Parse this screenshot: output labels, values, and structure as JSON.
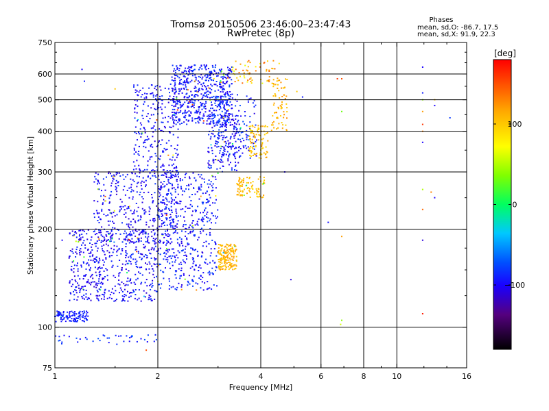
{
  "chart_data": {
    "type": "scatter",
    "title": "Tromsø 20150506 23:46:00–23:47:43",
    "subtitle": "RwPretec (8p)",
    "xlabel": "Frequency [MHz]",
    "ylabel": "Stationary phase Virtual Height [km]",
    "x_scale": "log2",
    "y_scale": "log",
    "xlim": [
      1,
      16
    ],
    "ylim": [
      75,
      750
    ],
    "x_ticks": [
      1,
      2,
      4,
      6,
      8,
      10,
      16
    ],
    "x_tick_labels": [
      "1",
      "2",
      "4",
      "6",
      "8",
      "10",
      "16"
    ],
    "y_ticks": [
      75,
      100,
      200,
      300,
      400,
      500,
      600,
      750
    ],
    "y_tick_labels": [
      "75",
      "100",
      "200",
      "300",
      "400",
      "500",
      "600",
      "750"
    ],
    "grid": true,
    "legend": {
      "title": "Phases",
      "lines": [
        "mean, sd,O: -86.7, 17.5",
        "mean, sd,X:  91.9, 22.3"
      ]
    },
    "colorbar": {
      "label": "[deg]",
      "range": [
        -180,
        180
      ],
      "ticks": [
        100,
        0,
        -100
      ],
      "tick_labels": [
        "100",
        "0",
        "−100"
      ]
    },
    "clusters": [
      {
        "x": [
          1.0,
          1.25
        ],
        "y": [
          104,
          112
        ],
        "n": 120,
        "phase": [
          -100,
          -80
        ]
      },
      {
        "x": [
          1.0,
          2.05
        ],
        "y": [
          88,
          95
        ],
        "n": 40,
        "phase": [
          -100,
          -70
        ]
      },
      {
        "x": [
          1.1,
          2.0
        ],
        "y": [
          120,
          200
        ],
        "n": 550,
        "phase": [
          -115,
          -80
        ]
      },
      {
        "x": [
          1.3,
          2.3
        ],
        "y": [
          180,
          300
        ],
        "n": 380,
        "phase": [
          -115,
          -80
        ]
      },
      {
        "x": [
          1.7,
          2.3
        ],
        "y": [
          300,
          560
        ],
        "n": 250,
        "phase": [
          -110,
          -80
        ]
      },
      {
        "x": [
          2.0,
          3.0
        ],
        "y": [
          130,
          300
        ],
        "n": 500,
        "phase": [
          -110,
          -75
        ]
      },
      {
        "x": [
          2.2,
          3.3
        ],
        "y": [
          420,
          640
        ],
        "n": 600,
        "phase": [
          -110,
          -75
        ]
      },
      {
        "x": [
          2.8,
          3.5
        ],
        "y": [
          300,
          450
        ],
        "n": 180,
        "phase": [
          -115,
          -75
        ]
      },
      {
        "x": [
          3.0,
          3.9
        ],
        "y": [
          330,
          520
        ],
        "n": 130,
        "phase": [
          -110,
          -70
        ]
      },
      {
        "x": [
          3.0,
          3.4
        ],
        "y": [
          150,
          180
        ],
        "n": 160,
        "phase": [
          95,
          125
        ]
      },
      {
        "x": [
          3.4,
          4.1
        ],
        "y": [
          250,
          290
        ],
        "n": 90,
        "phase": [
          90,
          120
        ]
      },
      {
        "x": [
          3.7,
          4.2
        ],
        "y": [
          330,
          420
        ],
        "n": 90,
        "phase": [
          85,
          120
        ]
      },
      {
        "x": [
          4.3,
          4.8
        ],
        "y": [
          400,
          580
        ],
        "n": 70,
        "phase": [
          95,
          130
        ]
      },
      {
        "x": [
          3.3,
          4.6
        ],
        "y": [
          560,
          660
        ],
        "n": 60,
        "phase": [
          60,
          150
        ]
      }
    ],
    "points": [
      {
        "x": 1.2,
        "y": 620,
        "phase": -100
      },
      {
        "x": 1.22,
        "y": 570,
        "phase": -90
      },
      {
        "x": 4.7,
        "y": 300,
        "phase": -100
      },
      {
        "x": 4.9,
        "y": 140,
        "phase": -110
      },
      {
        "x": 6.3,
        "y": 210,
        "phase": -95
      },
      {
        "x": 6.9,
        "y": 190,
        "phase": 120
      },
      {
        "x": 6.9,
        "y": 105,
        "phase": 40
      },
      {
        "x": 6.85,
        "y": 102,
        "phase": 60
      },
      {
        "x": 6.7,
        "y": 580,
        "phase": 160
      },
      {
        "x": 6.9,
        "y": 580,
        "phase": 150
      },
      {
        "x": 6.9,
        "y": 460,
        "phase": 30
      },
      {
        "x": 11.9,
        "y": 630,
        "phase": -100
      },
      {
        "x": 11.9,
        "y": 525,
        "phase": -90
      },
      {
        "x": 11.9,
        "y": 500,
        "phase": 40
      },
      {
        "x": 11.9,
        "y": 460,
        "phase": 120
      },
      {
        "x": 11.9,
        "y": 420,
        "phase": 160
      },
      {
        "x": 11.9,
        "y": 400,
        "phase": 130
      },
      {
        "x": 11.9,
        "y": 370,
        "phase": -100
      },
      {
        "x": 11.9,
        "y": 265,
        "phase": 50
      },
      {
        "x": 11.9,
        "y": 230,
        "phase": 140
      },
      {
        "x": 11.9,
        "y": 185,
        "phase": -110
      },
      {
        "x": 11.9,
        "y": 110,
        "phase": 170
      },
      {
        "x": 12.9,
        "y": 500,
        "phase": 100
      },
      {
        "x": 12.9,
        "y": 480,
        "phase": -100
      },
      {
        "x": 12.9,
        "y": 250,
        "phase": -100
      },
      {
        "x": 12.6,
        "y": 260,
        "phase": 130
      },
      {
        "x": 14.3,
        "y": 440,
        "phase": -80
      },
      {
        "x": 5.3,
        "y": 510,
        "phase": -90
      },
      {
        "x": 5.1,
        "y": 530,
        "phase": 100
      },
      {
        "x": 1.05,
        "y": 185,
        "phase": -100
      },
      {
        "x": 1.85,
        "y": 85,
        "phase": 150
      },
      {
        "x": 1.5,
        "y": 540,
        "phase": 100
      }
    ]
  }
}
